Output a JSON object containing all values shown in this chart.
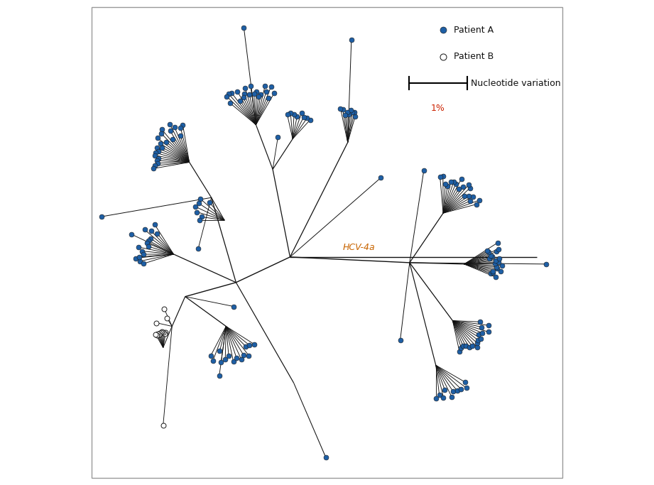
{
  "figsize": [
    9.21,
    6.83
  ],
  "dpi": 100,
  "background_color": "#ffffff",
  "patient_a_color": "#1e5fa5",
  "patient_b_fill": "#ffffff",
  "line_color": "#000000",
  "hcv_label": "HCV-4a",
  "hcv_label_color": "#b8860b",
  "legend_patientA_label": "Patient A",
  "legend_patientB_label": "Patient B",
  "scale_label": "1%",
  "scale_label_color": "#cc2200",
  "nucleotide_label": "Nucleotide variation"
}
